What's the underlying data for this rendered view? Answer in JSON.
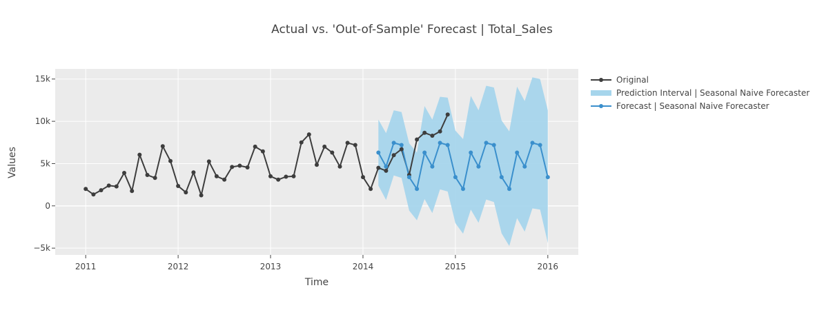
{
  "chart_data": {
    "type": "line",
    "title": "Actual vs. 'Out-of-Sample' Forecast | Total_Sales",
    "xlabel": "Time",
    "ylabel": "Values",
    "xlim": [
      2010.67,
      2016.33
    ],
    "ylim": [
      -5800,
      16200
    ],
    "x_ticks": [
      {
        "value": 2011,
        "label": "2011"
      },
      {
        "value": 2012,
        "label": "2012"
      },
      {
        "value": 2013,
        "label": "2013"
      },
      {
        "value": 2014,
        "label": "2014"
      },
      {
        "value": 2015,
        "label": "2015"
      },
      {
        "value": 2016,
        "label": "2016"
      }
    ],
    "y_ticks": [
      {
        "value": -5000,
        "label": "−5k"
      },
      {
        "value": 0,
        "label": "0"
      },
      {
        "value": 5000,
        "label": "5k"
      },
      {
        "value": 10000,
        "label": "10k"
      },
      {
        "value": 15000,
        "label": "15k"
      }
    ],
    "grid": true,
    "legend_position": "right",
    "series": [
      {
        "name": "Original",
        "color": "#3d3d3d",
        "start": "2011-01",
        "frequency": "monthly",
        "values": [
          2000,
          1350,
          1850,
          2400,
          2300,
          3900,
          1750,
          6050,
          3650,
          3300,
          7050,
          5300,
          2350,
          1600,
          3950,
          1250,
          5250,
          3500,
          3100,
          4600,
          4750,
          4550,
          7000,
          6450,
          3500,
          3100,
          3450,
          3500,
          7500,
          8450,
          4850,
          7000,
          6300,
          4650,
          7450,
          7200,
          3400,
          2000,
          4500,
          4150,
          6000,
          6700,
          3650,
          7850,
          8650,
          8300,
          8800,
          10800
        ]
      },
      {
        "name": "Forecast | Seasonal Naive Forecaster",
        "color": "#3a8fcc",
        "start": "2014-03",
        "frequency": "monthly",
        "values": [
          6300,
          4650,
          7450,
          7200,
          3400,
          2000,
          6300,
          4650,
          7450,
          7200,
          3400,
          2000,
          6300,
          4650,
          7450,
          7200,
          3400,
          2000,
          6300,
          4650,
          7450,
          7200,
          3400
        ]
      },
      {
        "name": "Prediction Interval | Seasonal Naive Forecaster",
        "color": "#a6d5ec",
        "start": "2014-03",
        "frequency": "monthly",
        "upper": [
          10200,
          8600,
          11300,
          11100,
          7400,
          6300,
          11800,
          10200,
          12900,
          12800,
          8900,
          7900,
          13000,
          11300,
          14200,
          14000,
          10100,
          8800,
          14100,
          12400,
          15200,
          15000,
          11300
        ],
        "lower": [
          2400,
          700,
          3600,
          3300,
          -550,
          -1700,
          800,
          -850,
          1950,
          1700,
          -2050,
          -3300,
          -450,
          -2000,
          750,
          450,
          -3250,
          -4750,
          -1450,
          -3050,
          -300,
          -450,
          -4400
        ]
      }
    ]
  }
}
